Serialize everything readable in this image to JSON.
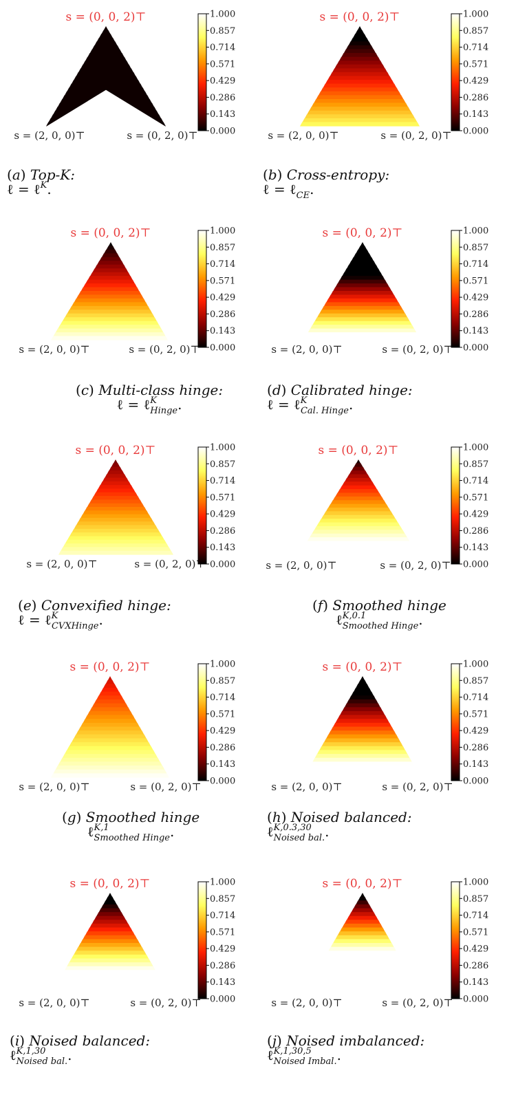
{
  "vertex_labels": {
    "top": "s = (0, 0, 2)⊤",
    "left": "s = (2, 0, 0)⊤",
    "right": "s = (0, 2, 0)⊤"
  },
  "colorbar_ticks": [
    "1.000",
    "0.857",
    "0.714",
    "0.571",
    "0.429",
    "0.286",
    "0.143",
    "0.000"
  ],
  "colormap": {
    "name": "hot",
    "stops": [
      "#000000",
      "#8b0000",
      "#ff2000",
      "#ff9a00",
      "#ffff60",
      "#ffffff"
    ]
  },
  "panels": [
    {
      "id": "a",
      "label": "a",
      "title": "Top-K:",
      "loss_main": "ℓ = ℓ",
      "loss_sup": "K",
      "loss_sub": "",
      "loss_end": "."
    },
    {
      "id": "b",
      "label": "b",
      "title": "Cross-entropy:",
      "loss_main": "ℓ = ℓ",
      "loss_sup": "",
      "loss_sub": "CE",
      "loss_end": "."
    },
    {
      "id": "c",
      "label": "c",
      "title": "Multi-class hinge:",
      "loss_main": "ℓ = ℓ",
      "loss_sup": "K",
      "loss_sub": "Hinge",
      "loss_end": "."
    },
    {
      "id": "d",
      "label": "d",
      "title": "Calibrated hinge:",
      "loss_main": "ℓ = ℓ",
      "loss_sup": "K",
      "loss_sub": "Cal. Hinge",
      "loss_end": "."
    },
    {
      "id": "e",
      "label": "e",
      "title": "Convexified hinge:",
      "loss_main": "ℓ = ℓ",
      "loss_sup": "K",
      "loss_sub": "CVXHinge",
      "loss_end": "."
    },
    {
      "id": "f",
      "label": "f",
      "title": "Smoothed hinge",
      "loss_main": "ℓ",
      "loss_sup": "K,0.1",
      "loss_sub": "Smoothed Hinge",
      "loss_end": "."
    },
    {
      "id": "g",
      "label": "g",
      "title": "Smoothed hinge",
      "loss_main": "ℓ",
      "loss_sup": "K,1",
      "loss_sub": "Smoothed Hinge",
      "loss_end": "."
    },
    {
      "id": "h",
      "label": "h",
      "title": "Noised balanced:",
      "loss_main": "ℓ",
      "loss_sup": "K,0.3,30",
      "loss_sub": "Noised bal.",
      "loss_end": "."
    },
    {
      "id": "i",
      "label": "i",
      "title": "Noised balanced:",
      "loss_main": "ℓ",
      "loss_sup": "K,1,30",
      "loss_sub": "Noised bal.",
      "loss_end": "."
    },
    {
      "id": "j",
      "label": "j",
      "title": "Noised imbalanced:",
      "loss_main": "ℓ",
      "loss_sup": "K,1,30,5",
      "loss_sub": "Noised Imbal.",
      "loss_end": "."
    }
  ]
}
